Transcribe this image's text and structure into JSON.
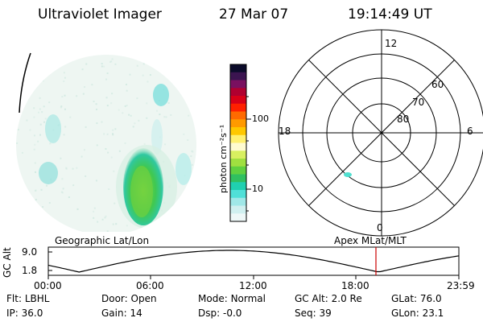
{
  "header": {
    "instrument": "Ultraviolet Imager",
    "date": "27 Mar 07",
    "time": "19:14:49 UT"
  },
  "colorbar": {
    "label": "photon cm⁻²s⁻¹",
    "ticks": [
      "100",
      "10"
    ],
    "colors": [
      "#0b0b2a",
      "#3b1450",
      "#7a1060",
      "#b00030",
      "#d80018",
      "#ff2000",
      "#ff6a00",
      "#ff9a00",
      "#ffc800",
      "#fff070",
      "#fffbd0",
      "#d8f060",
      "#a0e040",
      "#60d040",
      "#30c060",
      "#20d0b0",
      "#50e0d8",
      "#a0e8e8",
      "#d0f0f0",
      "#eef8f8"
    ]
  },
  "polar": {
    "mlt_labels": {
      "top": "12",
      "left": "18",
      "right": "6",
      "bottom": "0"
    },
    "lat_labels": [
      "60",
      "70",
      "80"
    ]
  },
  "timeline": {
    "left_title": "Geographic Lat/Lon",
    "right_title": "Apex MLat/MLT",
    "axis_label": "GC Alt",
    "y_max": "9.0",
    "y_min": "1.8",
    "ticks": [
      "00:00",
      "06:00",
      "12:00",
      "18:00",
      "23:59"
    ],
    "marker_time": "19:14"
  },
  "status": {
    "row1": [
      {
        "label": "Flt:",
        "value": "LBHL"
      },
      {
        "label": "Door:",
        "value": "Open"
      },
      {
        "label": "Mode:",
        "value": "Normal"
      },
      {
        "label": "GC Alt:",
        "value": "2.0 Re"
      },
      {
        "label": "GLat:",
        "value": "76.0"
      }
    ],
    "row2": [
      {
        "label": "IP:",
        "value": "36.0"
      },
      {
        "label": "Gain:",
        "value": "14"
      },
      {
        "label": "Dsp:",
        "value": "-0.0"
      },
      {
        "label": "Seq:",
        "value": "39"
      },
      {
        "label": "GLon:",
        "value": "23.1"
      }
    ]
  }
}
